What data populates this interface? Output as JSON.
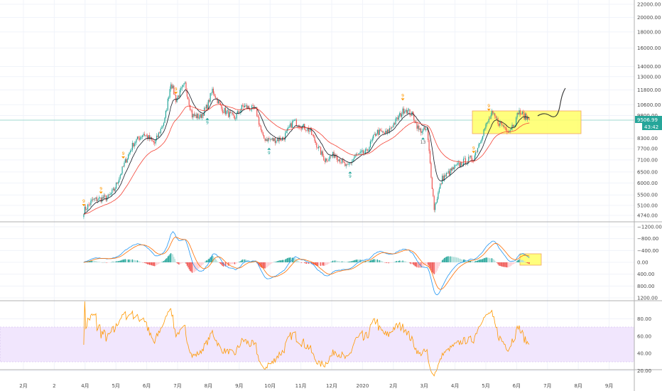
{
  "chart_data": {
    "type": "candlestick",
    "price_axis": {
      "scale": "log",
      "ticks": [
        "22000.00",
        "20000.00",
        "18000.00",
        "16000.00",
        "14000.00",
        "13000.00",
        "11800.00",
        "10600.00",
        "9800.00",
        "8300.00",
        "7700.00",
        "7100.00",
        "6500.00",
        "6000.00",
        "5500.00",
        "5100.00",
        "4740.00"
      ],
      "last_price": "9506.99",
      "countdown": "43:42",
      "last_price_color": "#26a69a"
    },
    "macd_axis": {
      "ticks": [
        "1200.00",
        "800.00",
        "400.00",
        "0.00",
        "−400.00",
        "−800.00",
        "−1200.00"
      ]
    },
    "rsi_axis": {
      "ticks": [
        "80.00",
        "60.00",
        "40.00",
        "20.00"
      ],
      "band": [
        30,
        70
      ],
      "band_color": "#e9d8fd"
    },
    "time_axis": {
      "ticks": [
        "2月",
        "2",
        "4月",
        "5月",
        "6月",
        "7月",
        "8月",
        "9月",
        "10月",
        "11月",
        "12月",
        "2020",
        "2月",
        "3月",
        "4月",
        "5月",
        "6月",
        "7月",
        "8月",
        "9月"
      ]
    },
    "close_series": [
      [
        "2019-04-01",
        4900
      ],
      [
        "2019-04-10",
        5300
      ],
      [
        "2019-04-25",
        5400
      ],
      [
        "2019-05-01",
        5700
      ],
      [
        "2019-05-12",
        7000
      ],
      [
        "2019-05-20",
        8000
      ],
      [
        "2019-05-30",
        8600
      ],
      [
        "2019-06-10",
        8000
      ],
      [
        "2019-06-20",
        9500
      ],
      [
        "2019-06-26",
        12500
      ],
      [
        "2019-07-01",
        11000
      ],
      [
        "2019-07-10",
        12300
      ],
      [
        "2019-07-17",
        9800
      ],
      [
        "2019-07-25",
        9700
      ],
      [
        "2019-08-01",
        10500
      ],
      [
        "2019-08-06",
        11800
      ],
      [
        "2019-08-15",
        10300
      ],
      [
        "2019-08-28",
        9600
      ],
      [
        "2019-09-05",
        10500
      ],
      [
        "2019-09-18",
        10200
      ],
      [
        "2019-09-25",
        8300
      ],
      [
        "2019-10-05",
        8200
      ],
      [
        "2019-10-15",
        8300
      ],
      [
        "2019-10-25",
        9400
      ],
      [
        "2019-10-30",
        9200
      ],
      [
        "2019-11-10",
        8800
      ],
      [
        "2019-11-20",
        7600
      ],
      [
        "2019-11-25",
        7100
      ],
      [
        "2019-12-05",
        7400
      ],
      [
        "2019-12-17",
        6700
      ],
      [
        "2019-12-25",
        7300
      ],
      [
        "2020-01-05",
        7500
      ],
      [
        "2020-01-15",
        8700
      ],
      [
        "2020-01-25",
        8600
      ],
      [
        "2020-02-05",
        9600
      ],
      [
        "2020-02-12",
        10300
      ],
      [
        "2020-02-20",
        9800
      ],
      [
        "2020-02-26",
        8800
      ],
      [
        "2020-03-05",
        8800
      ],
      [
        "2020-03-12",
        5000
      ],
      [
        "2020-03-20",
        6200
      ],
      [
        "2020-04-01",
        6700
      ],
      [
        "2020-04-10",
        7000
      ],
      [
        "2020-04-20",
        7200
      ],
      [
        "2020-04-30",
        8800
      ],
      [
        "2020-05-08",
        9900
      ],
      [
        "2020-05-15",
        9300
      ],
      [
        "2020-05-25",
        8800
      ],
      [
        "2020-06-01",
        9500
      ],
      [
        "2020-06-03",
        10100
      ],
      [
        "2020-06-10",
        9700
      ],
      [
        "2020-06-14",
        9507
      ]
    ],
    "signals": [
      {
        "date": "2019-04-01",
        "pos": "above",
        "label": "9"
      },
      {
        "date": "2019-04-18",
        "pos": "above",
        "label": "9"
      },
      {
        "date": "2019-05-10",
        "pos": "above",
        "label": "9"
      },
      {
        "date": "2019-07-01",
        "pos": "above",
        "label": "9"
      },
      {
        "date": "2019-08-01",
        "pos": "below",
        "label": "9"
      },
      {
        "date": "2019-10-01",
        "pos": "below",
        "label": "9"
      },
      {
        "date": "2019-12-20",
        "pos": "below",
        "label": "9"
      },
      {
        "date": "2020-02-10",
        "pos": "above",
        "label": "9"
      },
      {
        "date": "2020-03-01",
        "pos": "below",
        "label": "13"
      },
      {
        "date": "2020-04-20",
        "pos": "above",
        "label": "9"
      },
      {
        "date": "2020-05-05",
        "pos": "above",
        "label": "9"
      }
    ],
    "colors": {
      "up": "#26a69a",
      "down": "#ef5350",
      "ma_fast": "#131722",
      "ma_slow": "#f44336",
      "macd": "#2196f3",
      "signal": "#ff6d00",
      "rsi": "#ff9800",
      "highlight": "#ffff00"
    }
  }
}
